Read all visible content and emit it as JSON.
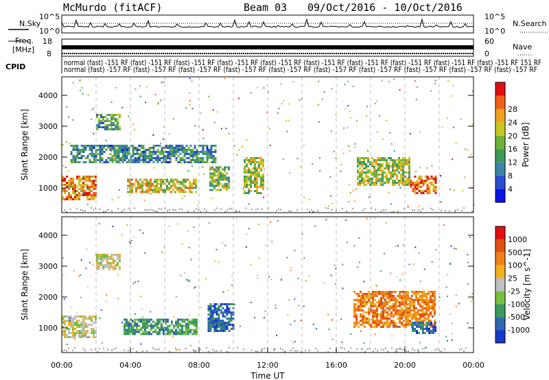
{
  "header": {
    "radar": "McMurdo (fitACF)",
    "beam": "Beam 03",
    "date_range": "09/Oct/2016 - 10/Oct/2016"
  },
  "strip": {
    "nsky_label": "N.Sky",
    "nsearch_label": "N.Search",
    "nsky_ticks": [
      "10^5",
      "10^0"
    ],
    "nsearch_ticks": [
      "10^5",
      "10^0"
    ],
    "freq_label_1": "Freq.",
    "freq_label_2": "[MHz]",
    "freq_ticks": [
      "18",
      "8"
    ],
    "nave_label": "Nave",
    "nave_ticks": [
      "60",
      "0"
    ],
    "cpid_label": "CPID",
    "cpid_row1": "normal (fast) -151 RF (fast) -151 RF (fast) -151 RF (fast) -151 RF (fast) -151 RF (fast) -151 RF (fast) -151 RF (fast) -151 RF (fast) -151 RF (fast) -151 RF 151 RF",
    "cpid_row2": "normal (fast) -157 RF (fast) -157 RF (fast) -157 RF (fast) -157 RF (fast) -157 RF (fast) -157 RF (fast) -157 RF (fast) -157 RF (fast) -157 RF (fast) -157 RF"
  },
  "chart_data": [
    {
      "type": "heatmap",
      "name": "power-panel",
      "ylabel": "Slant Range [km]",
      "y_ticks": [
        "1000",
        "2000",
        "3000",
        "4000"
      ],
      "ylim": [
        200,
        4600
      ],
      "colorbar_label": "Power [dB]",
      "colorbar_ticks": [
        "4",
        "8",
        "12",
        "16",
        "20",
        "24",
        "28"
      ],
      "colorbar_colors": [
        "#0a14e6",
        "#2a4fd0",
        "#3d86a8",
        "#3f9a5a",
        "#6fb23a",
        "#c8c820",
        "#f0a020",
        "#f06018",
        "#e01010"
      ],
      "regions": [
        {
          "t": [
            0.0,
            2.0
          ],
          "r": [
            600,
            1400
          ],
          "level": 0.78
        },
        {
          "t": [
            3.8,
            7.8
          ],
          "r": [
            850,
            1300
          ],
          "level": 0.62
        },
        {
          "t": [
            8.6,
            9.8
          ],
          "r": [
            900,
            1700
          ],
          "level": 0.5
        },
        {
          "t": [
            10.6,
            11.8
          ],
          "r": [
            800,
            2000
          ],
          "level": 0.55
        },
        {
          "t": [
            17.2,
            20.3
          ],
          "r": [
            1100,
            2000
          ],
          "level": 0.55
        },
        {
          "t": [
            20.3,
            21.8
          ],
          "r": [
            800,
            1400
          ],
          "level": 0.82
        },
        {
          "t": [
            2.0,
            3.4
          ],
          "r": [
            2900,
            3400
          ],
          "level": 0.35
        },
        {
          "t": [
            0.5,
            9.0
          ],
          "r": [
            1800,
            2400
          ],
          "level": 0.3
        }
      ]
    },
    {
      "type": "heatmap",
      "name": "velocity-panel",
      "ylabel": "Slant Range [km]",
      "y_ticks": [
        "1000",
        "2000",
        "3000",
        "4000"
      ],
      "ylim": [
        200,
        4600
      ],
      "colorbar_label": "Velocity [m s^-1]",
      "colorbar_ticks": [
        "1000",
        "500",
        "100",
        "25",
        "-25",
        "-100",
        "-500",
        "-1000"
      ],
      "colorbar_colors": [
        "#1838c8",
        "#3068b0",
        "#3c9a5a",
        "#78c040",
        "#c0c0c0",
        "#f0b020",
        "#f08018",
        "#e05010",
        "#e01010"
      ],
      "regions": [
        {
          "t": [
            0.0,
            2.0
          ],
          "r": [
            700,
            1400
          ],
          "class": 4
        },
        {
          "t": [
            3.6,
            7.9
          ],
          "r": [
            800,
            1300
          ],
          "class": 2
        },
        {
          "t": [
            8.5,
            10.0
          ],
          "r": [
            900,
            1800
          ],
          "class": 1
        },
        {
          "t": [
            17.0,
            21.8
          ],
          "r": [
            1000,
            2200
          ],
          "class": 6
        },
        {
          "t": [
            20.4,
            21.8
          ],
          "r": [
            800,
            1200
          ],
          "class": 1
        },
        {
          "t": [
            2.0,
            3.4
          ],
          "r": [
            2900,
            3400
          ],
          "class": 4
        }
      ]
    }
  ],
  "xaxis": {
    "label": "Time UT",
    "ticks": [
      "00:00",
      "04:00",
      "08:00",
      "12:00",
      "16:00",
      "20:00",
      "00:00"
    ],
    "tick_hours": [
      0,
      4,
      8,
      12,
      16,
      20,
      24
    ]
  }
}
